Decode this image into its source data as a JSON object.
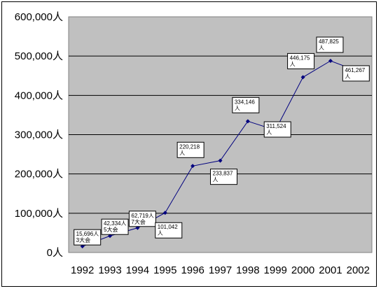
{
  "chart_data": {
    "type": "line",
    "title": "",
    "xlabel": "",
    "ylabel": "",
    "ylim": [
      0,
      600000
    ],
    "y_ticks": [
      0,
      100000,
      200000,
      300000,
      400000,
      500000,
      600000
    ],
    "y_tick_labels": [
      "0人",
      "100,000人",
      "200,000人",
      "300,000人",
      "400,000人",
      "500,000人",
      "600,000人"
    ],
    "categories": [
      "1992",
      "1993",
      "1994",
      "1995",
      "1996",
      "1997",
      "1998",
      "1999",
      "2000",
      "2001",
      "2002"
    ],
    "series": [
      {
        "values": [
          15696,
          42334,
          62719,
          101042,
          220218,
          233837,
          334146,
          311524,
          446175,
          487825,
          461267
        ]
      }
    ],
    "data_labels": [
      [
        "15,696人",
        "3大会"
      ],
      [
        "42,334人",
        "5大会"
      ],
      [
        "62,719人",
        "7大会"
      ],
      [
        "101,042",
        "人"
      ],
      [
        "220,218",
        "人"
      ],
      [
        "233,837",
        "人"
      ],
      [
        "334,146",
        "人"
      ],
      [
        "311,524",
        "人"
      ],
      [
        "446,175",
        "人"
      ],
      [
        "487,825",
        "人"
      ],
      [
        "461,267",
        "人"
      ]
    ],
    "grid": true,
    "legend": "none",
    "colors": {
      "plot_background": "#c0c0c0",
      "line": "#00007f",
      "gridline": "#000000"
    }
  }
}
